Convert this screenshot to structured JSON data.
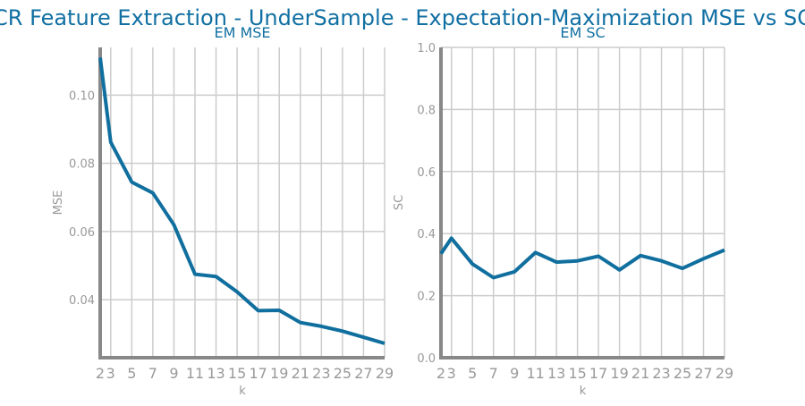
{
  "figure_title": "CR Feature Extraction - UnderSample - Expectation-Maximization MSE vs SC",
  "colors": {
    "title": "#1170a3",
    "series": "#106f9e",
    "grid": "#cccccc",
    "axis": "#888888",
    "tick": "#999999"
  },
  "chart_data": [
    {
      "type": "line",
      "title": "EM MSE",
      "xlabel": "k",
      "ylabel": "MSE",
      "x": [
        2,
        3,
        5,
        7,
        9,
        11,
        13,
        15,
        17,
        19,
        21,
        23,
        25,
        27,
        29
      ],
      "series": [
        {
          "values": [
            0.111,
            0.0862,
            0.0745,
            0.0713,
            0.062,
            0.0475,
            0.0468,
            0.0423,
            0.0368,
            0.0369,
            0.0333,
            0.0322,
            0.0308,
            0.029,
            0.0272
          ]
        }
      ],
      "xlim": [
        2,
        29
      ],
      "ylim": [
        0.023,
        0.114
      ],
      "yticks": [
        0.04,
        0.06,
        0.08,
        0.1
      ],
      "ytick_labels": [
        "0.04",
        "0.06",
        "0.08",
        "0.10"
      ],
      "xticks": [
        2,
        3,
        5,
        7,
        9,
        11,
        13,
        15,
        17,
        19,
        21,
        23,
        25,
        27,
        29
      ],
      "grid": true
    },
    {
      "type": "line",
      "title": "EM SC",
      "xlabel": "k",
      "ylabel": "SC",
      "x": [
        2,
        3,
        5,
        7,
        9,
        11,
        13,
        15,
        17,
        19,
        21,
        23,
        25,
        27,
        29
      ],
      "series": [
        {
          "values": [
            0.335,
            0.385,
            0.302,
            0.258,
            0.277,
            0.339,
            0.308,
            0.312,
            0.327,
            0.283,
            0.329,
            0.312,
            0.288,
            0.319,
            0.347
          ]
        }
      ],
      "xlim": [
        2,
        29
      ],
      "ylim": [
        0.0,
        1.0
      ],
      "yticks": [
        0.0,
        0.2,
        0.4,
        0.6,
        0.8,
        1.0
      ],
      "ytick_labels": [
        "0.0",
        "0.2",
        "0.4",
        "0.6",
        "0.8",
        "1.0"
      ],
      "xticks": [
        2,
        3,
        5,
        7,
        9,
        11,
        13,
        15,
        17,
        19,
        21,
        23,
        25,
        27,
        29
      ],
      "grid": true
    }
  ]
}
